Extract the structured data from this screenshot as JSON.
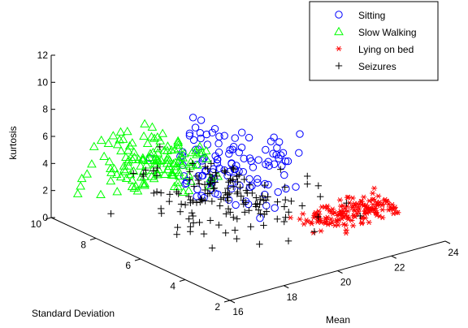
{
  "chart_data": {
    "type": "scatter",
    "projection": "3d",
    "xlabel": "Mean",
    "ylabel": "Standard Deviation",
    "zlabel": "kurtosis",
    "xlim": [
      16,
      24
    ],
    "ylim": [
      2,
      10
    ],
    "zlim": [
      0,
      12
    ],
    "xticks": [
      "16",
      "18",
      "20",
      "22",
      "24"
    ],
    "yticks": [
      "2",
      "4",
      "6",
      "8",
      "10"
    ],
    "zticks": [
      "0",
      "2",
      "4",
      "6",
      "8",
      "10",
      "12"
    ],
    "grid": false,
    "legend_position": "top-right",
    "series": [
      {
        "name": "Sitting",
        "marker": "circle-open",
        "color": "#0000ff",
        "center": {
          "x": 19.6,
          "y": 6.2,
          "z": 4.8
        },
        "spread": {
          "x": 0.9,
          "y": 1.0,
          "z": 1.3
        },
        "z_range": [
          2.5,
          8.0
        ],
        "count": 120
      },
      {
        "name": "Slow Walking",
        "marker": "triangle-open",
        "color": "#00ff00",
        "center": {
          "x": 18.6,
          "y": 8.6,
          "z": 3.6
        },
        "spread": {
          "x": 1.0,
          "y": 0.7,
          "z": 0.9
        },
        "z_range": [
          1.8,
          5.8
        ],
        "count": 140
      },
      {
        "name": "Lying on bed",
        "marker": "asterisk",
        "color": "#ff0000",
        "center": {
          "x": 22.7,
          "y": 4.6,
          "z": 0.9
        },
        "spread": {
          "x": 0.9,
          "y": 0.35,
          "z": 0.35
        },
        "z_range": [
          0.2,
          2.0
        ],
        "count": 160
      },
      {
        "name": "Seizures",
        "marker": "plus",
        "color": "#000000",
        "center": {
          "x": 19.8,
          "y": 6.4,
          "z": 2.3
        },
        "spread": {
          "x": 1.3,
          "y": 1.2,
          "z": 0.8
        },
        "z_range": [
          0.8,
          10.5
        ],
        "count": 150
      }
    ]
  }
}
